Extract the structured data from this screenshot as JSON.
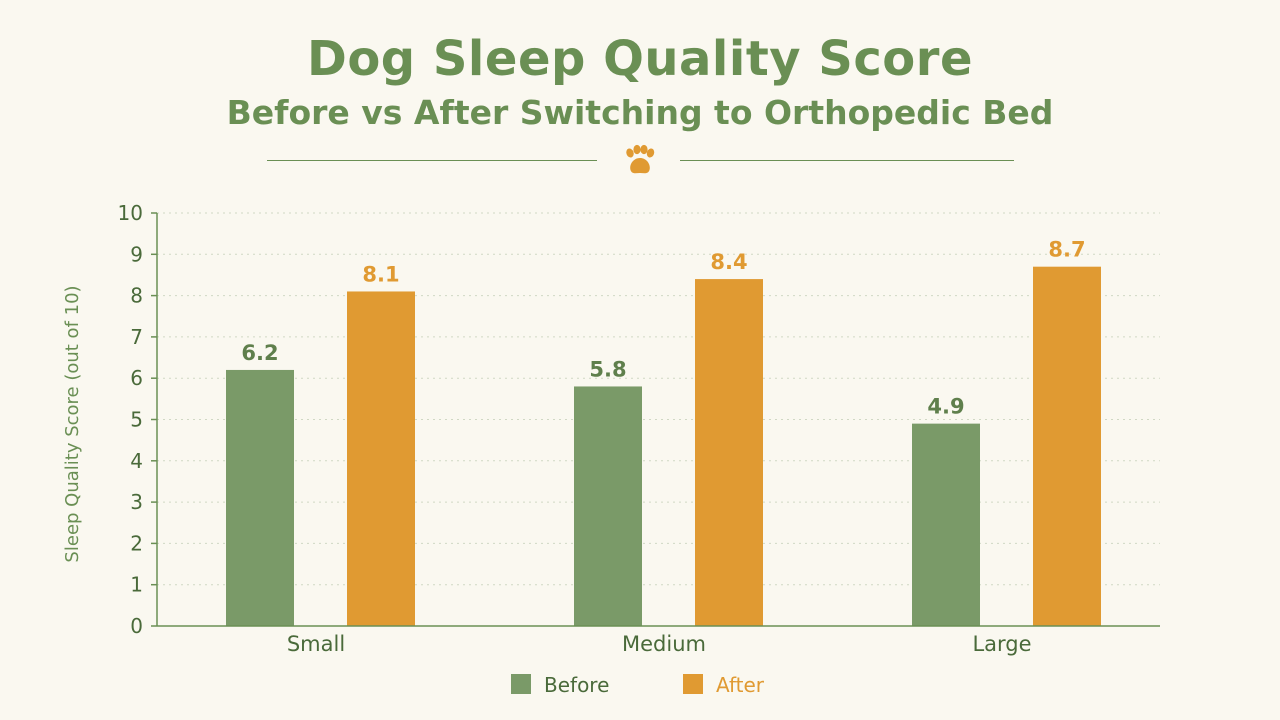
{
  "colors": {
    "background": "#faf8f0",
    "title": "#6a8f54",
    "text": "#4a6a3a",
    "before": "#7a9a68",
    "after": "#e09a32",
    "grid": "#d0d8c4",
    "axis": "#6a8f54"
  },
  "decoration": {
    "icon": "paw-icon"
  },
  "chart_data": {
    "type": "bar",
    "title": "Dog Sleep Quality Score",
    "subtitle": "Before vs After Switching to Orthopedic Bed",
    "ylabel": "Sleep Quality Score (out of 10)",
    "xlabel": "",
    "ylim": [
      0,
      10
    ],
    "yticks": [
      0,
      1,
      2,
      3,
      4,
      5,
      6,
      7,
      8,
      9,
      10
    ],
    "categories": [
      "Small",
      "Medium",
      "Large"
    ],
    "series": [
      {
        "name": "Before",
        "values": [
          6.2,
          5.8,
          4.9
        ],
        "color": "#7a9a68"
      },
      {
        "name": "After",
        "values": [
          8.1,
          8.4,
          8.7
        ],
        "color": "#e09a32"
      }
    ],
    "data_labels": true,
    "grid": "horizontal-dotted",
    "legend": "bottom-center"
  }
}
